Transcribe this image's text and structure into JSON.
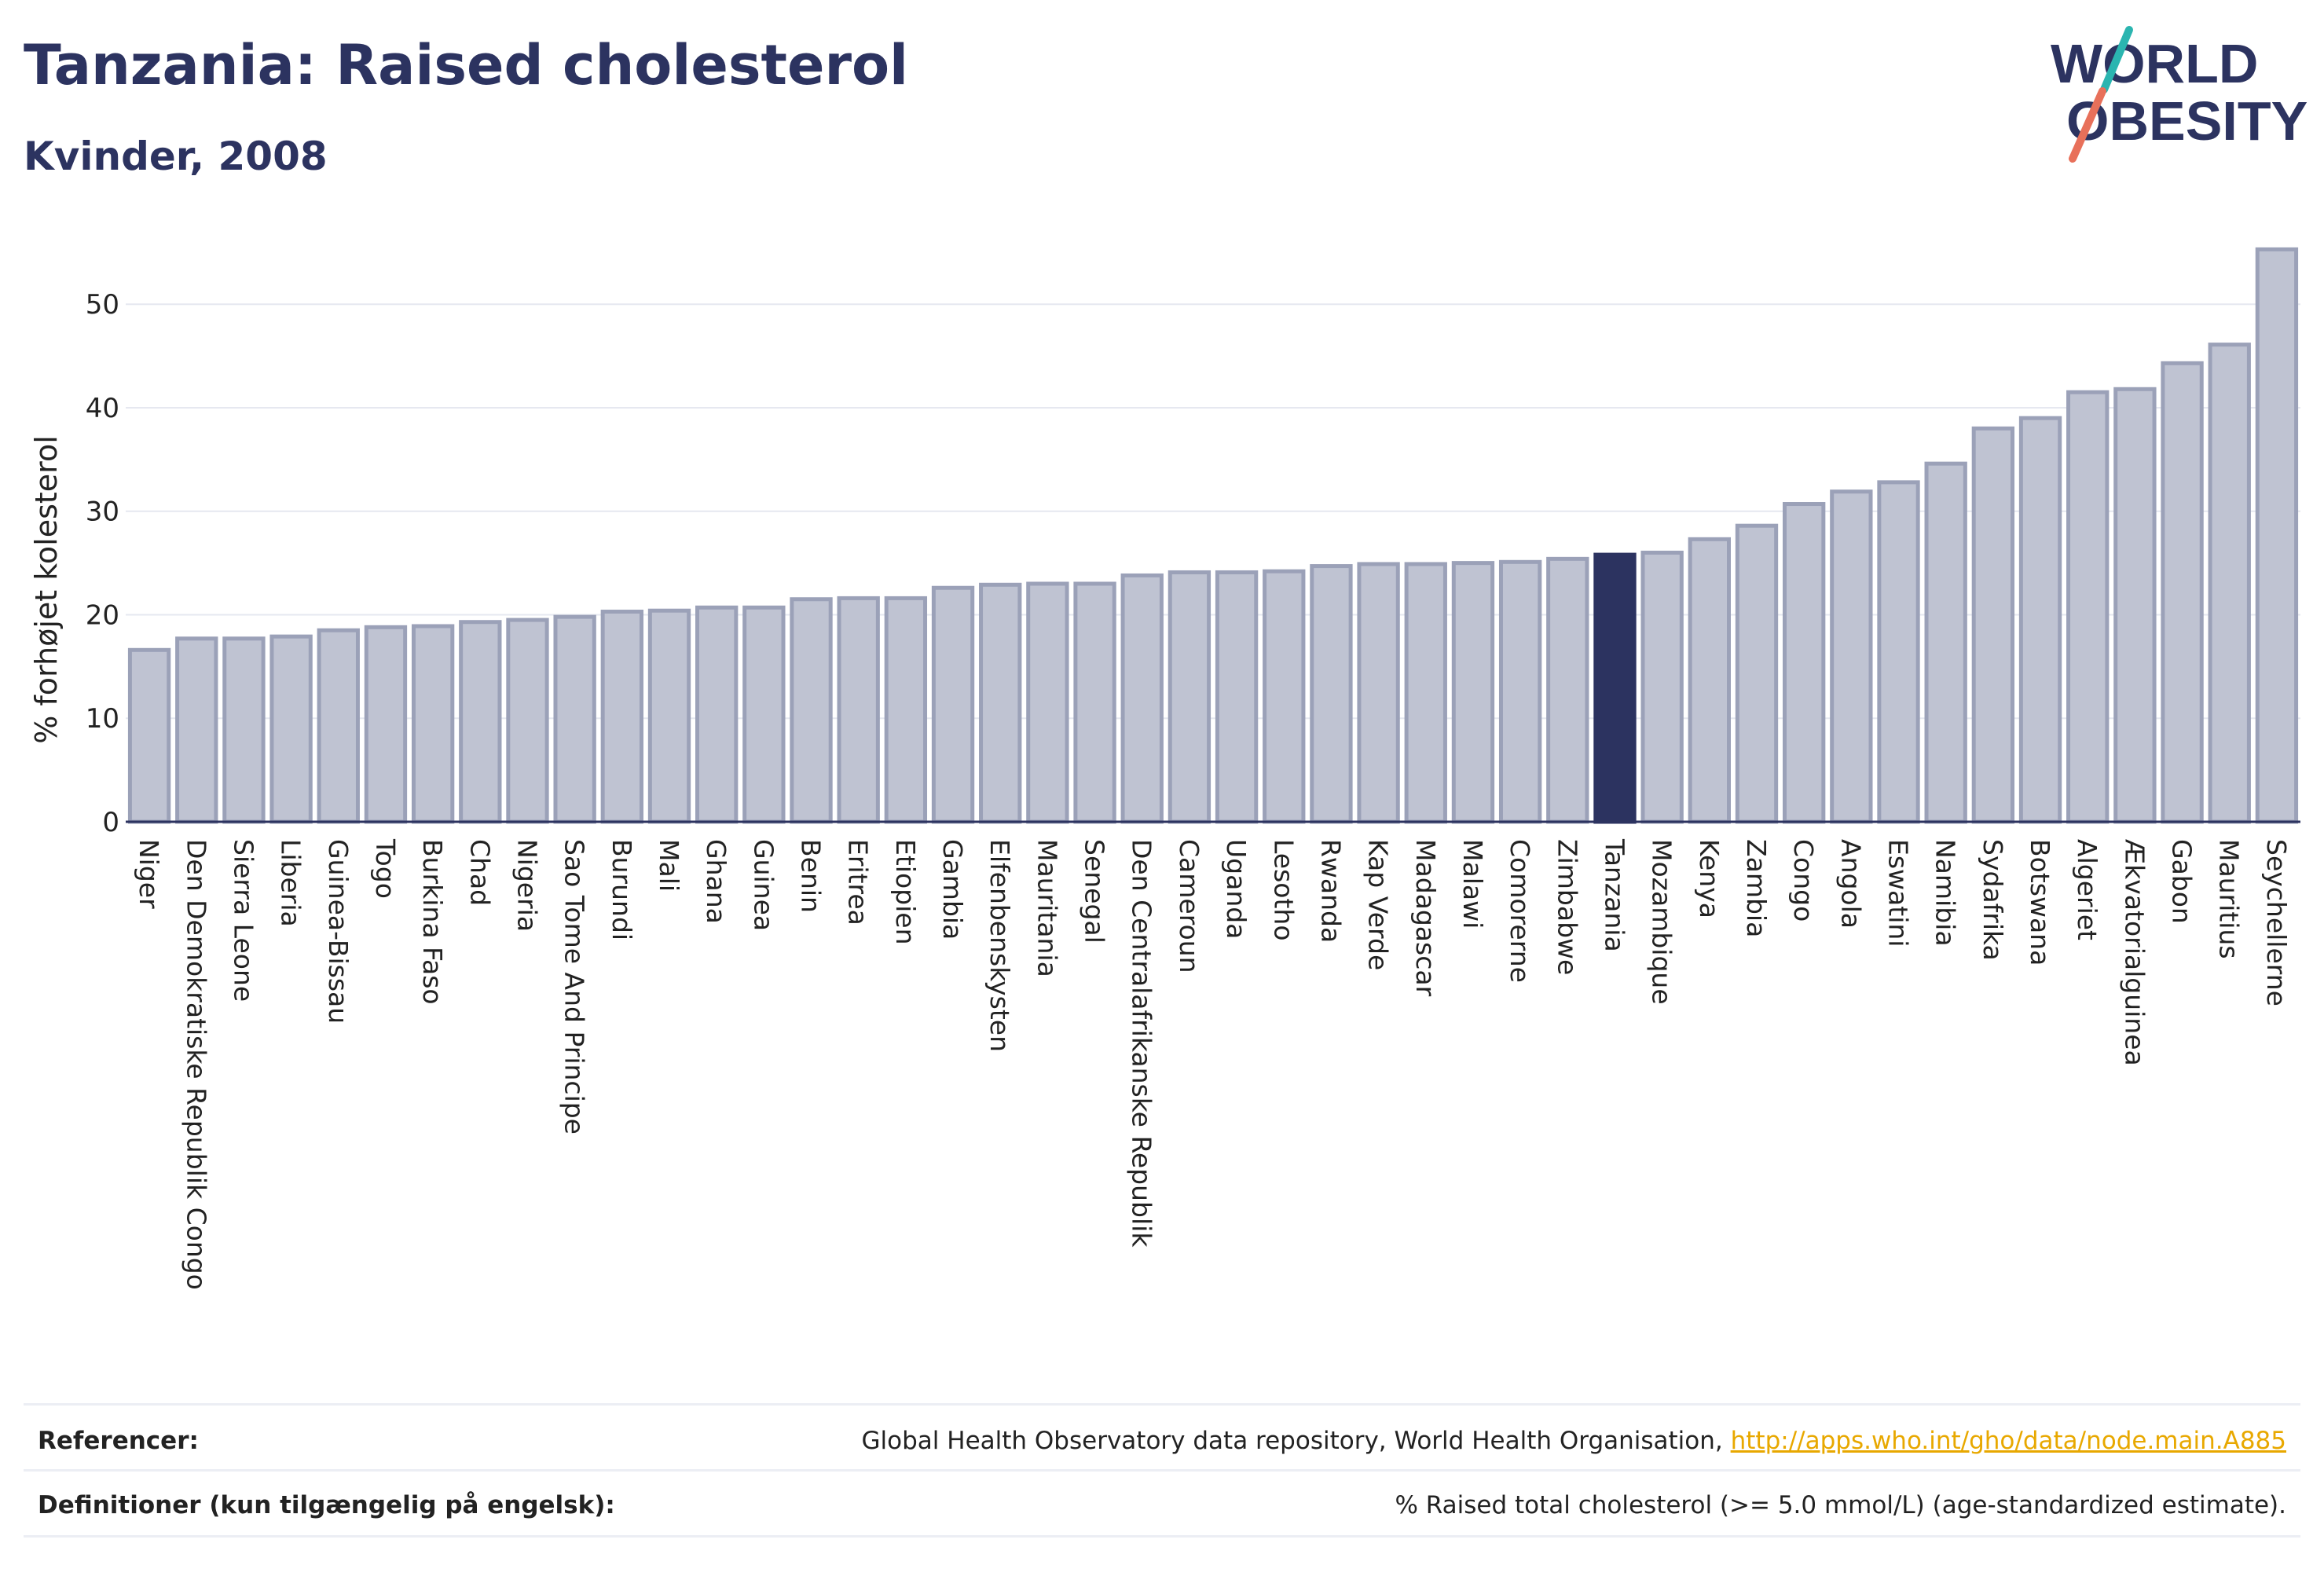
{
  "header": {
    "title": "Tanzania: Raised cholesterol",
    "subtitle": "Kvinder, 2008"
  },
  "logo": {
    "line1": "WORLD",
    "line2": "OBESITY"
  },
  "chart_data": {
    "type": "bar",
    "title": "Tanzania: Raised cholesterol",
    "subtitle": "Kvinder, 2008",
    "xlabel": "",
    "ylabel": "% forhøjet kolesterol",
    "ylim": [
      0,
      57
    ],
    "yticks": [
      0,
      10,
      20,
      30,
      40,
      50
    ],
    "grid": true,
    "highlight": "Tanzania",
    "colors": {
      "bar": "#bfc3d2",
      "bar_border": "#9ba1b8",
      "highlight": "#2c3360"
    },
    "categories": [
      "Niger",
      "Den Demokratiske Republik Congo",
      "Sierra Leone",
      "Liberia",
      "Guinea-Bissau",
      "Togo",
      "Burkina Faso",
      "Chad",
      "Nigeria",
      "Sao Tome And Principe",
      "Burundi",
      "Mali",
      "Ghana",
      "Guinea",
      "Benin",
      "Eritrea",
      "Etiopien",
      "Gambia",
      "Elfenbenskysten",
      "Mauritania",
      "Senegal",
      "Den Centralafrikanske Republik",
      "Cameroun",
      "Uganda",
      "Lesotho",
      "Rwanda",
      "Kap Verde",
      "Madagascar",
      "Malawi",
      "Comorerne",
      "Zimbabwe",
      "Tanzania",
      "Mozambique",
      "Kenya",
      "Zambia",
      "Congo",
      "Angola",
      "Eswatini",
      "Namibia",
      "Sydafrika",
      "Botswana",
      "Algeriet",
      "Ækvatorialguinea",
      "Gabon",
      "Mauritius",
      "Seychellerne"
    ],
    "values": [
      16.6,
      17.7,
      17.7,
      17.9,
      18.5,
      18.8,
      18.9,
      19.3,
      19.5,
      19.8,
      20.3,
      20.4,
      20.7,
      20.7,
      21.5,
      21.6,
      21.6,
      22.6,
      22.9,
      23.0,
      23.0,
      23.8,
      24.1,
      24.1,
      24.2,
      24.7,
      24.9,
      24.9,
      25.0,
      25.1,
      25.4,
      25.8,
      26.0,
      27.3,
      28.6,
      30.7,
      31.9,
      32.8,
      34.6,
      38.0,
      39.0,
      41.5,
      41.8,
      44.3,
      46.1,
      55.3
    ]
  },
  "footer": {
    "references_label": "Referencer:",
    "references_text": "Global Health Observatory data repository, World Health Organisation,",
    "references_link": "http://apps.who.int/gho/data/node.main.A885",
    "definitions_label": "Definitioner (kun tilgængelig på engelsk):",
    "definitions_text": "% Raised total cholesterol (>= 5.0 mmol/L) (age-standardized estimate)."
  }
}
